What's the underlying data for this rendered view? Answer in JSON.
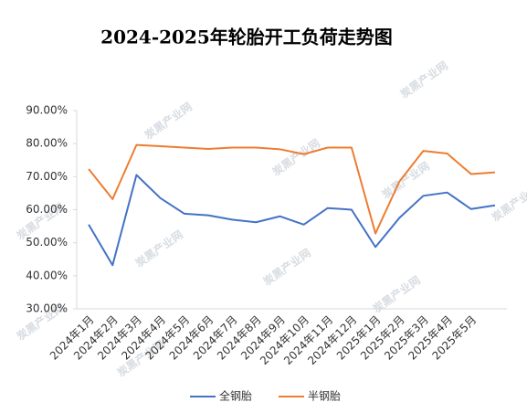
{
  "chart_data": {
    "type": "line",
    "title": "2024-2025年轮胎开工负荷走势图",
    "watermark": "炭黑产业网",
    "categories": [
      "2024年1月",
      "2024年2月",
      "2024年3月",
      "2024年4月",
      "2024年5月",
      "2024年6月",
      "2024年7月",
      "2024年8月",
      "2024年9月",
      "2024年10月",
      "2024年11月",
      "2024年12月",
      "2025年1月",
      "2025年2月",
      "2025年3月",
      "2025年4月",
      "2025年5月",
      null
    ],
    "series": [
      {
        "name": "全钢胎",
        "color": "#4472c4",
        "values": [
          55.5,
          43.2,
          70.5,
          63.5,
          58.8,
          58.3,
          57.0,
          56.2,
          58.0,
          55.5,
          60.5,
          60.0,
          48.7,
          57.5,
          64.2,
          65.2,
          60.2,
          61.3
        ]
      },
      {
        "name": "半钢胎",
        "color": "#ed7d31",
        "values": [
          72.3,
          63.2,
          79.6,
          79.2,
          78.8,
          78.4,
          78.8,
          78.8,
          78.3,
          76.8,
          78.8,
          78.8,
          52.8,
          68.5,
          77.8,
          77.0,
          70.8,
          71.3
        ]
      }
    ],
    "ylim": [
      30,
      90
    ],
    "yticks": [
      {
        "value": 30,
        "label": "30.00%"
      },
      {
        "value": 40,
        "label": "40.00%"
      },
      {
        "value": 50,
        "label": "50.00%"
      },
      {
        "value": 60,
        "label": "60.00%"
      },
      {
        "value": 70,
        "label": "70.00%"
      },
      {
        "value": 80,
        "label": "80.00%"
      },
      {
        "value": 90,
        "label": "90.00%"
      }
    ],
    "legend": "bottom"
  }
}
